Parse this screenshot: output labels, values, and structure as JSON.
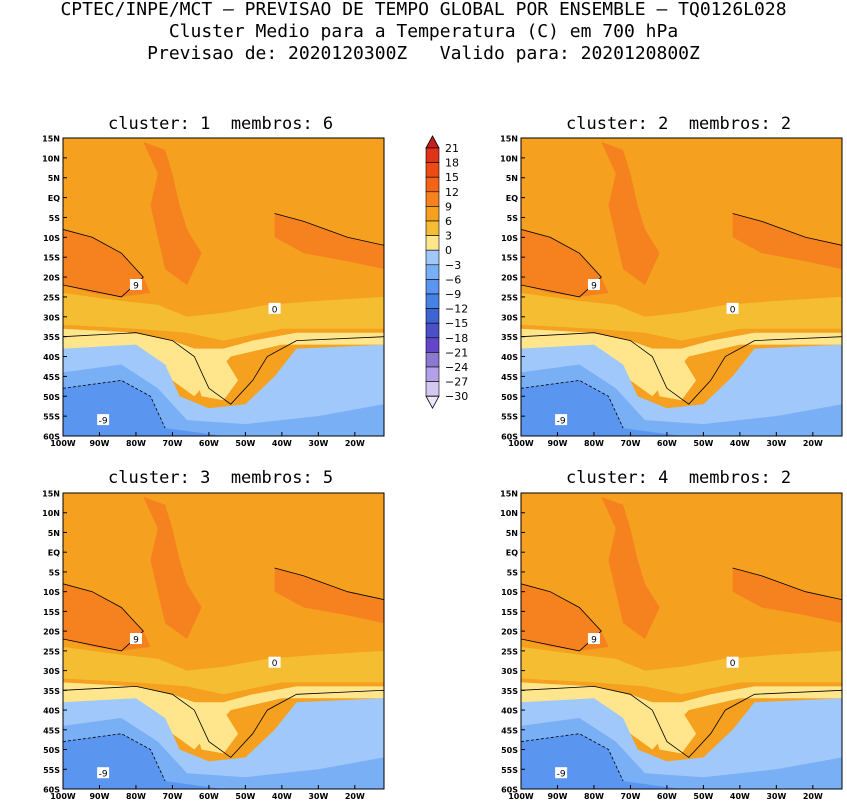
{
  "title": {
    "line1": "CPTEC/INPE/MCT – PREVISAO DE TEMPO GLOBAL POR ENSEMBLE – TQ0126L028",
    "line2": "Cluster Medio para a Temperatura (C) em 700 hPa",
    "line3": "Previsao de: 2020120300Z   Valido para: 2020120800Z"
  },
  "panels": [
    {
      "label": "cluster: 1  membros: 6"
    },
    {
      "label": "cluster: 2  membros: 2"
    },
    {
      "label": "cluster: 3  membros: 5"
    },
    {
      "label": "cluster: 4  membros: 2"
    }
  ],
  "chart_data": {
    "type": "heatmap",
    "variable": "Temperatura (C) em 700 hPa",
    "x_ticks": [
      "100W",
      "90W",
      "80W",
      "70W",
      "60W",
      "50W",
      "40W",
      "30W",
      "20W"
    ],
    "y_ticks": [
      "15N",
      "10N",
      "5N",
      "EQ",
      "5S",
      "10S",
      "15S",
      "20S",
      "25S",
      "30S",
      "35S",
      "40S",
      "45S",
      "50S",
      "55S",
      "60S"
    ],
    "xlim": [
      -100,
      -12
    ],
    "ylim": [
      -60,
      15
    ],
    "colorbar": {
      "levels": [
        21,
        18,
        15,
        12,
        9,
        6,
        3,
        0,
        -3,
        -6,
        -9,
        -12,
        -15,
        -18,
        -21,
        -24,
        -27,
        -30
      ],
      "colors": [
        "#c81e1e",
        "#e03218",
        "#ee4a14",
        "#f56414",
        "#f5821e",
        "#f5a01e",
        "#f5be32",
        "#ffe68c",
        "#a0c8fa",
        "#78aff5",
        "#5a96f0",
        "#4682e6",
        "#3c64d2",
        "#4b50c8",
        "#6446c8",
        "#8c78d2",
        "#b4a0e6",
        "#d2c8f0",
        "#ebe6fa"
      ]
    },
    "contour_labels": [
      "9",
      "0",
      "-9"
    ],
    "clusters": [
      {
        "cluster": 1,
        "membros": 6
      },
      {
        "cluster": 2,
        "membros": 2
      },
      {
        "cluster": 3,
        "membros": 5
      },
      {
        "cluster": 4,
        "membros": 2
      }
    ]
  }
}
